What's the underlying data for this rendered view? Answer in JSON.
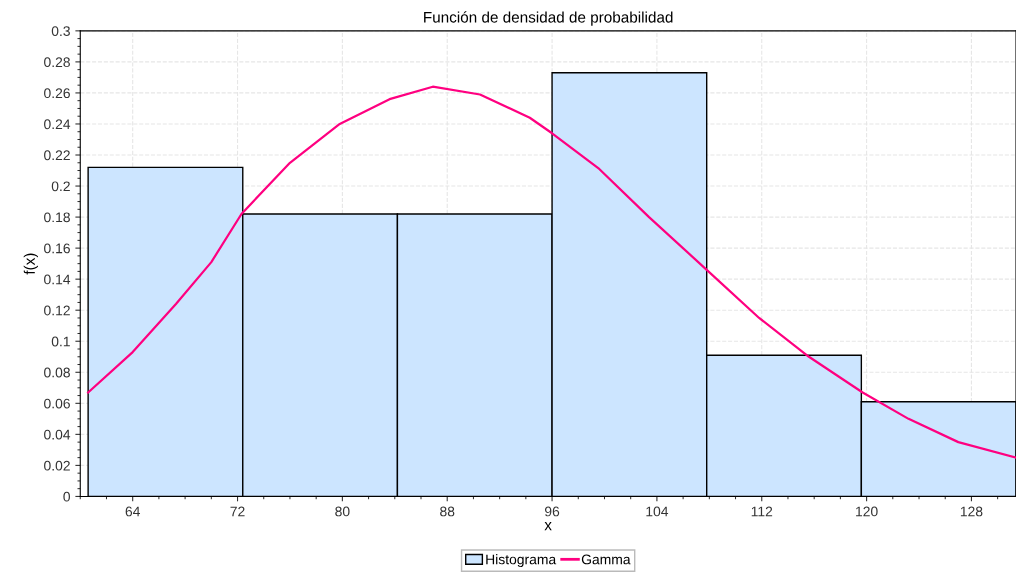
{
  "chart_data": {
    "type": "histogram",
    "title": "Función de densidad de probabilidad",
    "xlabel": "x",
    "ylabel": "f(x)",
    "bins": [
      60.6,
      72.4,
      84.2,
      96.0,
      107.8,
      119.6,
      131.4
    ],
    "series": [
      {
        "name": "Histograma",
        "color": "#cce5ff",
        "values": [
          0.212,
          0.182,
          0.182,
          0.273,
          0.091,
          0.061
        ]
      },
      {
        "type": "line",
        "name": "Gamma",
        "color": "#ff0080",
        "x": [
          60.6,
          64,
          67.3,
          70,
          72.3,
          76,
          79.8,
          83.6,
          86.9,
          90.5,
          94.3,
          96,
          99.6,
          103.4,
          107.8,
          111.8,
          115.6,
          119.7,
          123.2,
          127,
          131.4
        ],
        "values": [
          0.067,
          0.093,
          0.124,
          0.151,
          0.182,
          0.215,
          0.24,
          0.256,
          0.264,
          0.259,
          0.244,
          0.234,
          0.211,
          0.18,
          0.146,
          0.115,
          0.09,
          0.067,
          0.05,
          0.035,
          0.025
        ]
      }
    ],
    "xlim": [
      60,
      131.4
    ],
    "xticks": [
      64,
      72,
      80,
      88,
      96,
      104,
      112,
      120,
      128
    ],
    "ylim": [
      0,
      0.3
    ],
    "yticks": [
      0,
      0.02,
      0.04,
      0.06,
      0.08,
      0.1,
      0.12,
      0.14,
      0.16,
      0.18,
      0.2,
      0.22,
      0.24,
      0.26,
      0.28,
      0.3
    ],
    "grid": true,
    "legend": "bottom",
    "marker": "none",
    "line_style": "solid"
  }
}
